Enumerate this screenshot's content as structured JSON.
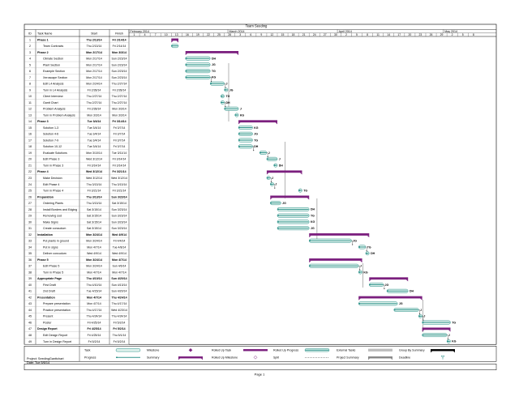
{
  "project_title": "Team Seeding",
  "columns": {
    "id": "ID",
    "name": "Task Name",
    "start": "Start",
    "finish": "Finish"
  },
  "months": [
    {
      "label": "February 2014"
    },
    {
      "label": "March 2014"
    },
    {
      "label": "April 2014"
    },
    {
      "label": "May 2014"
    }
  ],
  "days": [
    "1",
    "4",
    "7",
    "10",
    "13",
    "16",
    "19",
    "22",
    "25",
    "28",
    "3",
    "6",
    "9",
    "12",
    "15",
    "18",
    "21",
    "24",
    "27",
    "30",
    "2",
    "5",
    "8",
    "11",
    "14",
    "17",
    "20",
    "23",
    "26",
    "29",
    "2",
    "5",
    "8"
  ],
  "tasks": [
    {
      "id": "1",
      "name": "Phase 1",
      "start": "Thu 2/13/14",
      "finish": "Fri 2/14/14",
      "summary": true
    },
    {
      "id": "2",
      "name": "Team Contracts",
      "start": "Thu 2/13/14",
      "finish": "Fri 2/14/14"
    },
    {
      "id": "3",
      "name": "Phase 2",
      "start": "Mon 2/17/14",
      "finish": "Mon 3/3/14",
      "summary": true
    },
    {
      "id": "4",
      "name": "Climate Section",
      "start": "Mon 2/17/14",
      "finish": "Sun 2/23/14",
      "res": "DH"
    },
    {
      "id": "5",
      "name": "Plant Section",
      "start": "Mon 2/17/14",
      "finish": "Sun 2/23/14",
      "res": "JG"
    },
    {
      "id": "6",
      "name": "Example Section",
      "start": "Mon 2/17/14",
      "finish": "Sun 2/23/14",
      "res": "TG"
    },
    {
      "id": "7",
      "name": "Xeroscape Section",
      "start": "Mon 2/17/14",
      "finish": "Sun 2/23/14",
      "res": "KG"
    },
    {
      "id": "8",
      "name": "Edit L4 Analysis",
      "start": "Mon 2/24/14",
      "finish": "Thu 2/27/14",
      "res": "J"
    },
    {
      "id": "9",
      "name": "Turn in L4 Analysis",
      "start": "Fri 2/28/14",
      "finish": "Fri 2/28/14",
      "res": "JG"
    },
    {
      "id": "10",
      "name": "Client Interview",
      "start": "Thu 2/27/14",
      "finish": "Thu 2/27/14",
      "res": "TG"
    },
    {
      "id": "11",
      "name": "Gantt Chart",
      "start": "Thu 2/27/14",
      "finish": "Thu 2/27/14",
      "res": "DH"
    },
    {
      "id": "12",
      "name": "Problem Analysis",
      "start": "Fri 2/28/14",
      "finish": "Mon 3/3/14",
      "res": "J"
    },
    {
      "id": "13",
      "name": "Turn in Problem Analysis",
      "start": "Mon 3/3/14",
      "finish": "Mon 3/3/14",
      "res": "KG"
    },
    {
      "id": "14",
      "name": "Phase 3",
      "start": "Tue 3/4/14",
      "finish": "Fri 3/14/14",
      "summary": true
    },
    {
      "id": "15",
      "name": "Solution 1-3",
      "start": "Tue 3/4/14",
      "finish": "Fri 3/7/14",
      "res": "KG"
    },
    {
      "id": "16",
      "name": "Solution 4-6",
      "start": "Tue 3/4/14",
      "finish": "Fri 3/7/14",
      "res": "JG"
    },
    {
      "id": "17",
      "name": "Solution 7-9",
      "start": "Tue 3/4/14",
      "finish": "Fri 3/7/14",
      "res": "TG"
    },
    {
      "id": "18",
      "name": "Solution 10-12",
      "start": "Tue 3/4/14",
      "finish": "Fri 3/7/14",
      "res": "DH"
    },
    {
      "id": "19",
      "name": "Evaluate Solutions",
      "start": "Mon 3/10/14",
      "finish": "Tue 3/11/14",
      "res": "J"
    },
    {
      "id": "20",
      "name": "Edit Phase 3",
      "start": "Wed 3/12/14",
      "finish": "Fri 3/14/14",
      "res": "J"
    },
    {
      "id": "21",
      "name": "Turn in Phase 3",
      "start": "Fri 3/14/14",
      "finish": "Fri 3/14/14",
      "res": "DH"
    },
    {
      "id": "22",
      "name": "Phase 4",
      "start": "Wed 3/12/14",
      "finish": "Fri 3/21/14",
      "summary": true
    },
    {
      "id": "23",
      "name": "Make Decision",
      "start": "Wed 3/12/14",
      "finish": "Wed 3/12/14",
      "res": "J"
    },
    {
      "id": "24",
      "name": "Edit Phase 4",
      "start": "Thu 3/13/14",
      "finish": "Thu 3/13/14",
      "res": "J"
    },
    {
      "id": "25",
      "name": "Turn in Phase 4",
      "start": "Fri 3/21/14",
      "finish": "Fri 3/21/14",
      "res": "TG"
    },
    {
      "id": "26",
      "name": "Preparation",
      "start": "Thu 3/13/14",
      "finish": "Sun 3/23/14",
      "summary": true
    },
    {
      "id": "27",
      "name": "Ordering Plants",
      "start": "Thu 3/13/14",
      "finish": "Sat 3/15/14",
      "res": "JG"
    },
    {
      "id": "28",
      "name": "Install Borders and Edging",
      "start": "Sat 3/15/14",
      "finish": "Sun 3/23/14",
      "res": "DH"
    },
    {
      "id": "29",
      "name": "Removing sod",
      "start": "Sat 3/15/14",
      "finish": "Sun 3/23/14",
      "res": "TG"
    },
    {
      "id": "30",
      "name": "Make Signs",
      "start": "Sat 3/15/14",
      "finish": "Sun 3/23/14",
      "res": "KG"
    },
    {
      "id": "31",
      "name": "Create concudum",
      "start": "Sat 3/15/14",
      "finish": "Sun 3/23/14",
      "res": "JG"
    },
    {
      "id": "32",
      "name": "Installation",
      "start": "Mon 3/24/14",
      "finish": "Wed 4/9/14",
      "summary": true
    },
    {
      "id": "33",
      "name": "Put plants in ground",
      "start": "Mon 3/24/14",
      "finish": "Fri 4/4/14",
      "res": "JG"
    },
    {
      "id": "34",
      "name": "Put in signs",
      "start": "Mon 4/7/14",
      "finish": "Tue 4/8/14",
      "res": "TG"
    },
    {
      "id": "35",
      "name": "Deliver concudum",
      "start": "Wed 4/9/14",
      "finish": "Wed 4/9/14",
      "res": "DH"
    },
    {
      "id": "36",
      "name": "Phase 5",
      "start": "Mon 3/24/14",
      "finish": "Mon 4/7/14",
      "summary": true
    },
    {
      "id": "37",
      "name": "Edit Phase 5",
      "start": "Mon 3/24/14",
      "finish": "Sun 4/6/14",
      "res": "J"
    },
    {
      "id": "38",
      "name": "Turn in Phase 5",
      "start": "Mon 4/7/14",
      "finish": "Mon 4/7/14",
      "res": "KG"
    },
    {
      "id": "39",
      "name": "Appropriate Page",
      "start": "Thu 4/10/14",
      "finish": "Sun 4/20/14",
      "summary": true
    },
    {
      "id": "40",
      "name": "First Draft",
      "start": "Thu 4/10/14",
      "finish": "Sun 4/13/14",
      "res": "JG"
    },
    {
      "id": "41",
      "name": "2nd Draft",
      "start": "Tue 4/15/14",
      "finish": "Sun 4/20/14",
      "res": "DH"
    },
    {
      "id": "42",
      "name": "Presentation",
      "start": "Mon 4/7/14",
      "finish": "Thu 4/24/14",
      "summary": true
    },
    {
      "id": "43",
      "name": "Prepare presentation",
      "start": "Mon 4/7/14",
      "finish": "Thu 4/17/14",
      "res": "JG"
    },
    {
      "id": "44",
      "name": "Practice presentation",
      "start": "Thu 4/17/14",
      "finish": "Wed 4/23/14",
      "res": "J"
    },
    {
      "id": "45",
      "name": "Present",
      "start": "Thu 4/24/14",
      "finish": "Thu 4/24/14",
      "res": "J"
    },
    {
      "id": "46",
      "name": "Poster",
      "start": "Fri 4/25/14",
      "finish": "Fri 5/2/14",
      "res": "TG"
    },
    {
      "id": "47",
      "name": "Design Report",
      "start": "Fri 4/25/14",
      "finish": "Fri 5/2/14",
      "summary": true
    },
    {
      "id": "48",
      "name": "Edit Design Report",
      "start": "Fri 4/25/14",
      "finish": "Thu 5/1/14",
      "res": "J"
    },
    {
      "id": "49",
      "name": "Turn in Design Report",
      "start": "Fri 5/2/14",
      "finish": "Fri 5/2/14",
      "res": "KG"
    }
  ],
  "footer": {
    "project_line": "Project: SeedingGanttchart",
    "date_line": "Date: Tue 5/6/14",
    "page": "Page 1"
  },
  "legend": [
    [
      {
        "label": "Task",
        "sym": "task"
      },
      {
        "label": "Milestone",
        "sym": "milestone"
      },
      {
        "label": "Rolled Up Task",
        "sym": "rolled-task"
      },
      {
        "label": "Rolled Up Progress",
        "sym": "rolled-progress"
      },
      {
        "label": "External Tasks",
        "sym": "external-task"
      },
      {
        "label": "Group By Summary",
        "sym": "group-summary"
      }
    ],
    [
      {
        "label": "Progress",
        "sym": "progress"
      },
      {
        "label": "Summary",
        "sym": "summary"
      },
      {
        "label": "Rolled Up Milestone",
        "sym": "rolled-milestone"
      },
      {
        "label": "Split",
        "sym": "split"
      },
      {
        "label": "Project Summary",
        "sym": "project-summary"
      },
      {
        "label": "Deadline",
        "sym": "deadline"
      }
    ]
  ],
  "colors": {
    "summary": "#7b1f7e",
    "bar_fill": "#e4f4ef",
    "bar_stroke": "#1f8a82",
    "progress": "#1f8a82",
    "grid": "#9a9a9a",
    "external": "#bcbcbc",
    "project_summary": "#888888"
  }
}
